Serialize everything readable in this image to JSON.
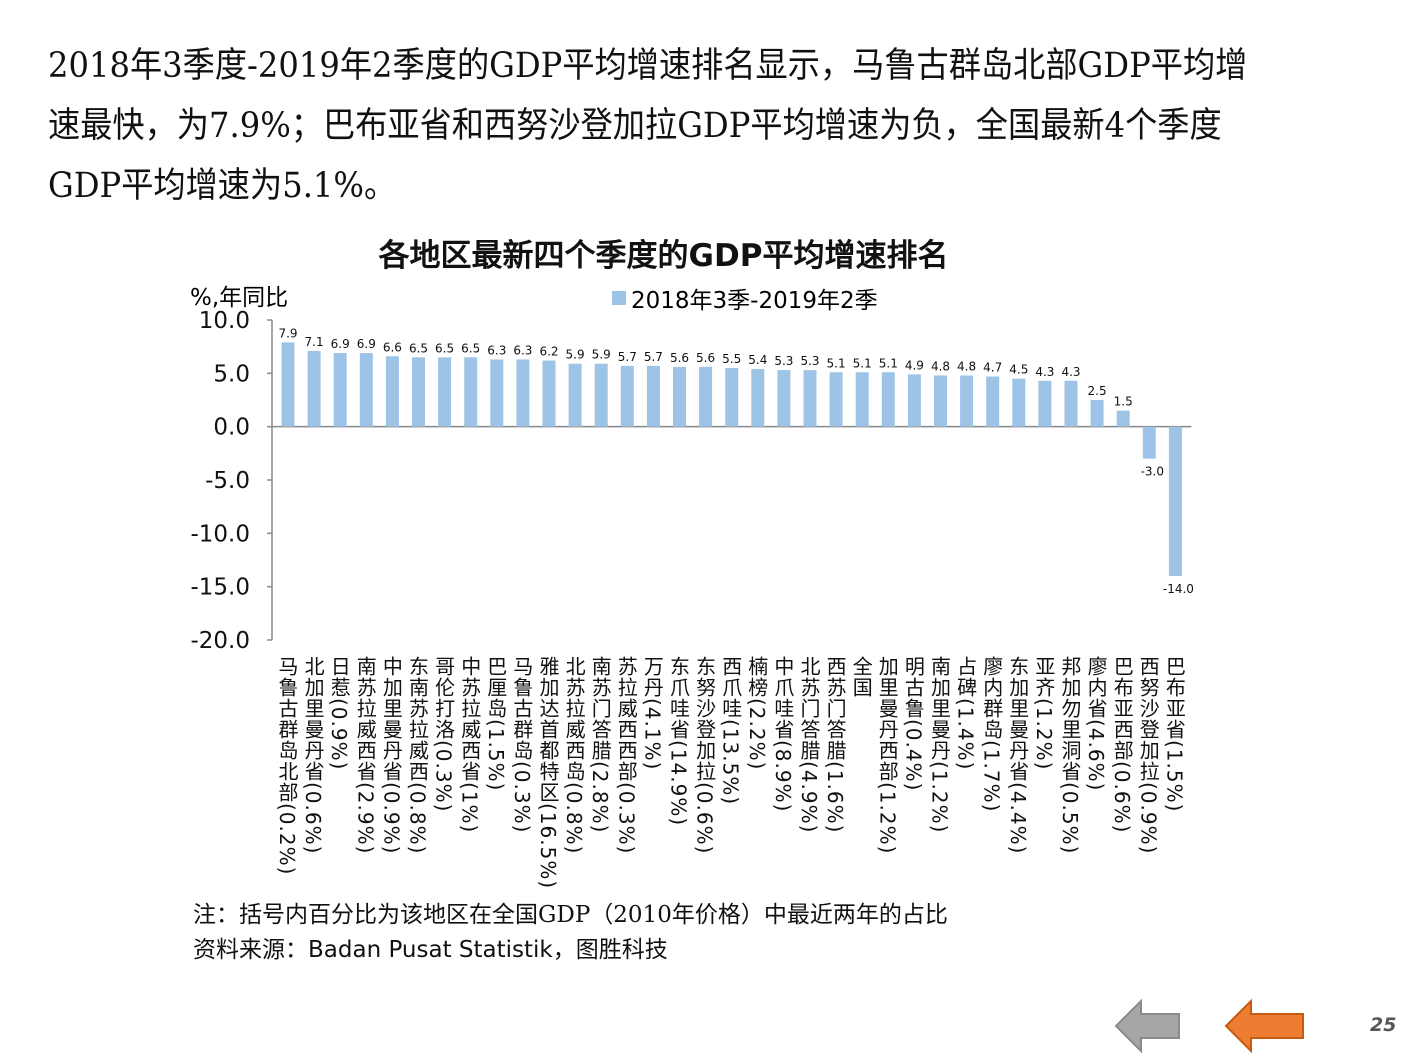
{
  "intro_text": "2018年3季度-2019年2季度的GDP平均增速排名显示，马鲁古群岛北部GDP平均增速最快，为7.9%；巴布亚省和西努沙登加拉GDP平均增速为负，全国最新4个季度GDP平均增速为5.1%。",
  "chart_data": {
    "type": "bar",
    "title": "各地区最新四个季度的GDP平均增速排名",
    "ylabel": "%,年同比",
    "xlabel": "",
    "ylim": [
      -20,
      10
    ],
    "yticks": [
      "10.0",
      "5.0",
      "0.0",
      "-5.0",
      "-10.0",
      "-15.0",
      "-20.0"
    ],
    "ytick_values": [
      10,
      5,
      0,
      -5,
      -10,
      -15,
      -20
    ],
    "legend": "top-center",
    "grid": false,
    "series": [
      {
        "name": "2018年3季-2019年2季",
        "color": "#9dc3e6"
      }
    ],
    "categories": [
      "马鲁古群岛北部(0.2%)",
      "北加里曼丹省(0.6%)",
      "日惹(0.9%)",
      "南苏拉威西省(2.9%)",
      "中加里曼丹省(0.9%)",
      "东南苏拉威西(0.8%)",
      "哥伦打洛(0.3%)",
      "中苏拉威西省(1%)",
      "巴厘岛(1.5%)",
      "马鲁古群岛(0.3%)",
      "雅加达首都特区(16.5%)",
      "北苏拉威西岛(0.8%)",
      "南苏门答腊(2.8%)",
      "苏拉威西西部(0.3%)",
      "万丹(4.1%)",
      "东爪哇省(14.9%)",
      "东努沙登加拉(0.6%)",
      "西爪哇(13.5%)",
      "楠榜(2.2%)",
      "中爪哇省(8.9%)",
      "北苏门答腊(4.9%)",
      "西苏门答腊(1.6%)",
      "全国",
      "加里曼丹西部(1.2%)",
      "明古鲁(0.4%)",
      "南加里曼丹(1.2%)",
      "占碑(1.4%)",
      "廖内群岛(1.7%)",
      "东加里曼丹省(4.4%)",
      "亚齐(1.2%)",
      "邦加勿里洞省(0.5%)",
      "廖内省(4.6%)",
      "巴布亚西部(0.6%)",
      "西努沙登加拉(0.9%)",
      "巴布亚省(1.5%)"
    ],
    "values": [
      7.9,
      7.1,
      6.9,
      6.9,
      6.6,
      6.5,
      6.5,
      6.5,
      6.3,
      6.3,
      6.2,
      5.9,
      5.9,
      5.7,
      5.7,
      5.6,
      5.6,
      5.5,
      5.4,
      5.3,
      5.3,
      5.1,
      5.1,
      5.1,
      4.9,
      4.8,
      4.8,
      4.7,
      4.5,
      4.3,
      4.3,
      2.5,
      1.5,
      -3.0,
      -14.0
    ],
    "value_labels": [
      "7.9",
      "7.1",
      "6.9",
      "6.9",
      "6.6",
      "6.5",
      "6.5",
      "6.5",
      "6.3",
      "6.3",
      "6.2",
      "5.9",
      "5.9",
      "5.7",
      "5.7",
      "5.6",
      "5.6",
      "5.5",
      "5.4",
      "5.3",
      "5.3",
      "5.1",
      "5.1",
      "5.1",
      "4.9",
      "4.8",
      "4.8",
      "4.7",
      "4.5",
      "4.3",
      "4.3",
      "2.5",
      "1.5",
      "-3.0",
      "-14.0"
    ]
  },
  "note": "注：括号内百分比为该地区在全国GDP（2010年价格）中最近两年的占比",
  "source_label": "资料来源：",
  "source_text": "Badan Pusat Statistik，图胜科技",
  "page_number": "25",
  "nav": {
    "prev_color": "#a6a6a6",
    "next_color": "#ed7d31"
  }
}
